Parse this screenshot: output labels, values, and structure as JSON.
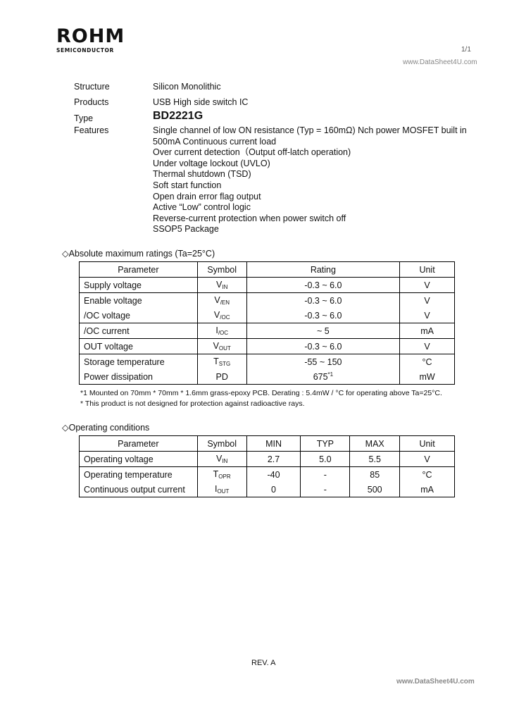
{
  "header": {
    "logo": "ROHM",
    "logo_sub": "SEMICONDUCTOR",
    "page": "1/1",
    "watermark": "www.DataSheet4U.com"
  },
  "info": {
    "structure_label": "Structure",
    "structure": "Silicon Monolithic",
    "products_label": "Products",
    "products": "USB High side switch IC",
    "type_label": "Type",
    "type": "BD2221G",
    "features_label": "Features",
    "features": [
      "Single channel of low ON resistance (Typ = 160mΩ) Nch power MOSFET built in",
      "500mA Continuous current load",
      "Over current detection（Output off-latch operation)",
      "Under voltage lockout (UVLO)",
      "Thermal shutdown (TSD)",
      "Soft start function",
      "Open drain error flag output",
      "Active “Low” control logic",
      "Reverse-current protection when power switch off",
      "SSOP5 Package"
    ]
  },
  "abs_max": {
    "title": "◇Absolute maximum ratings (Ta=25°C)",
    "headers": [
      "Parameter",
      "Symbol",
      "Rating",
      "Unit"
    ],
    "rows": [
      {
        "param": "Supply voltage",
        "sym": "V",
        "sub": "IN",
        "rating": "-0.3 ~ 6.0",
        "unit": "V"
      },
      {
        "param": "Enable voltage",
        "sym": "V",
        "sub": "/EN",
        "rating": "-0.3 ~ 6.0",
        "unit": "V"
      },
      {
        "param": "/OC voltage",
        "sym": "V",
        "sub": "/OC",
        "rating": "-0.3 ~ 6.0",
        "unit": "V"
      },
      {
        "param": "/OC current",
        "sym": "I",
        "sub": "/OC",
        "rating": "~ 5",
        "unit": "mA"
      },
      {
        "param": "OUT voltage",
        "sym": "V",
        "sub": "OUT",
        "rating": "-0.3 ~ 6.0",
        "unit": "V"
      },
      {
        "param": "Storage temperature",
        "sym": "T",
        "sub": "STG",
        "rating": "-55 ~ 150",
        "unit": "°C"
      },
      {
        "param": "Power dissipation",
        "sym": "PD",
        "sub": "",
        "rating": "675",
        "rating_note": "*1",
        "unit": "mW"
      }
    ],
    "notes": [
      "*1 Mounted on 70mm * 70mm * 1.6mm grass-epoxy PCB. Derating : 5.4mW / °C for operating above Ta=25°C.",
      "* This product is not designed for protection against radioactive rays."
    ]
  },
  "op": {
    "title": "◇Operating conditions",
    "headers": [
      "Parameter",
      "Symbol",
      "MIN",
      "TYP",
      "MAX",
      "Unit"
    ],
    "rows": [
      {
        "param": "Operating voltage",
        "sym": "V",
        "sub": "IN",
        "min": "2.7",
        "typ": "5.0",
        "max": "5.5",
        "unit": "V"
      },
      {
        "param": "Operating temperature",
        "sym": "T",
        "sub": "OPR",
        "min": "-40",
        "typ": "-",
        "max": "85",
        "unit": "°C"
      },
      {
        "param": "Continuous output current",
        "sym": "I",
        "sub": "OUT",
        "min": "0",
        "typ": "-",
        "max": "500",
        "unit": "mA"
      }
    ]
  },
  "footer": {
    "rev": "REV. A",
    "watermark": "www.DataSheet4U.com"
  }
}
